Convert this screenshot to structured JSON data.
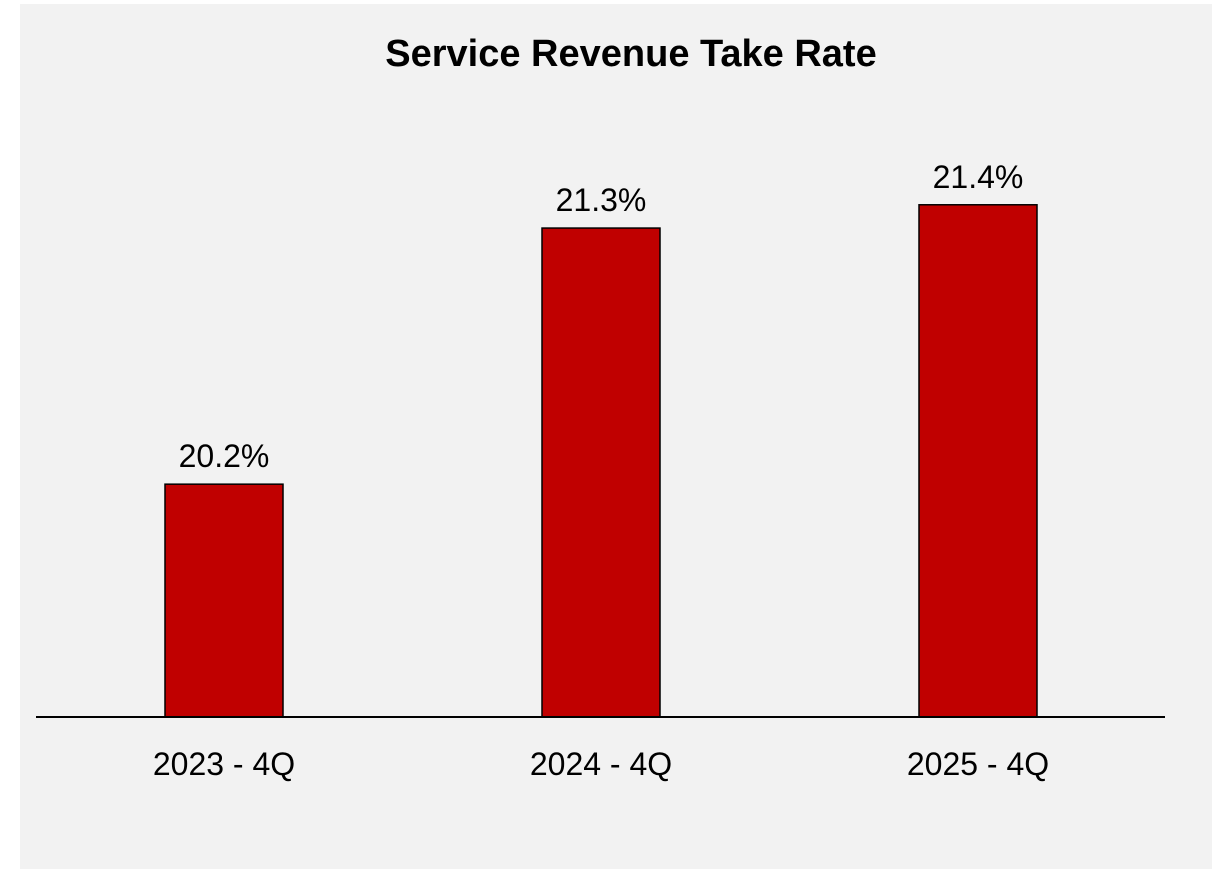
{
  "chart_data": {
    "type": "bar",
    "title": "Service Revenue Take Rate",
    "categories": [
      "2023 - 4Q",
      "2024 - 4Q",
      "2025 - 4Q"
    ],
    "values": [
      20.2,
      21.3,
      21.4
    ],
    "data_labels": [
      "20.2%",
      "21.3%",
      "21.4%"
    ],
    "xlabel": "",
    "ylabel": "",
    "ylim": [
      19.2,
      21.85
    ],
    "grid": false,
    "legend": "none",
    "colors": {
      "bar": "#c00000",
      "background": "#f2f2f2"
    }
  }
}
